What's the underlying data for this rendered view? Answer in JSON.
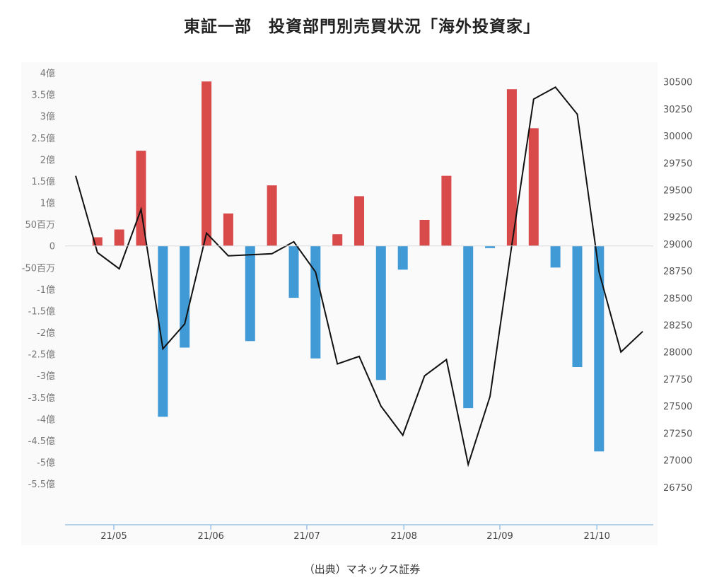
{
  "title": "東証一部　投資部門別売買状況「海外投資家」",
  "source": "（出典）マネックス証券",
  "colors": {
    "positive_bar": "#d94b4b",
    "negative_bar": "#3f9ad6",
    "line": "#111111",
    "plot_background": "#fafafa",
    "axis": "#9dc3e6"
  },
  "chart_data": {
    "type": "bar",
    "left_axis": {
      "unit": "億円",
      "ylim": [
        -6.2,
        4.0
      ],
      "ticks": [
        4,
        3.5,
        3,
        2.5,
        2,
        1.5,
        1,
        0.5,
        0,
        -0.5,
        -1,
        -1.5,
        -2,
        -2.5,
        -3,
        -3.5,
        -4,
        -4.5,
        -5,
        -5.5
      ],
      "tick_labels": [
        "4億",
        "3.5億",
        "3億",
        "2.5億",
        "2億",
        "1.5億",
        "1億",
        "50百万",
        "0",
        "-50百万",
        "-1億",
        "-1.5億",
        "-2億",
        "-2.5億",
        "-3億",
        "-3.5億",
        "-4億",
        "-4.5億",
        "-5億",
        "-5.5億"
      ]
    },
    "right_axis": {
      "ylim": [
        26500,
        30550
      ],
      "ticks": [
        30500,
        30250,
        30000,
        29750,
        29500,
        29250,
        29000,
        28750,
        28500,
        28250,
        28000,
        27750,
        27500,
        27250,
        27000,
        26750
      ],
      "tick_labels": [
        "30500",
        "30250",
        "30000",
        "29750",
        "29500",
        "29250",
        "29000",
        "28750",
        "28500",
        "28250",
        "28000",
        "27750",
        "27500",
        "27250",
        "27000",
        "26750"
      ]
    },
    "x_labels": [
      "21/05",
      "21/06",
      "21/07",
      "21/08",
      "21/09",
      "21/10"
    ],
    "x_label_slots": [
      1.75,
      6.2,
      10.6,
      15.05,
      19.45,
      23.9
    ],
    "x_slot_count": 27,
    "grid": false,
    "legend": "none",
    "series": [
      {
        "type": "bar",
        "values": [
          0.2,
          0.38,
          2.2,
          -3.95,
          -2.35,
          3.8,
          0.75,
          -2.2,
          1.4,
          -1.2,
          -2.6,
          0.27,
          1.15,
          -3.1,
          -0.55,
          0.6,
          1.62,
          -3.75,
          -0.05,
          3.62,
          2.72,
          -0.5,
          -2.8,
          -4.75
        ]
      },
      {
        "type": "line",
        "values": [
          29630,
          28920,
          28770,
          29320,
          28030,
          28260,
          29100,
          28890,
          28900,
          28910,
          29020,
          28740,
          27890,
          27960,
          27500,
          27230,
          27780,
          27930,
          26960,
          27590,
          28990,
          30340,
          30450,
          30200,
          28740,
          28000,
          28190
        ]
      }
    ]
  }
}
